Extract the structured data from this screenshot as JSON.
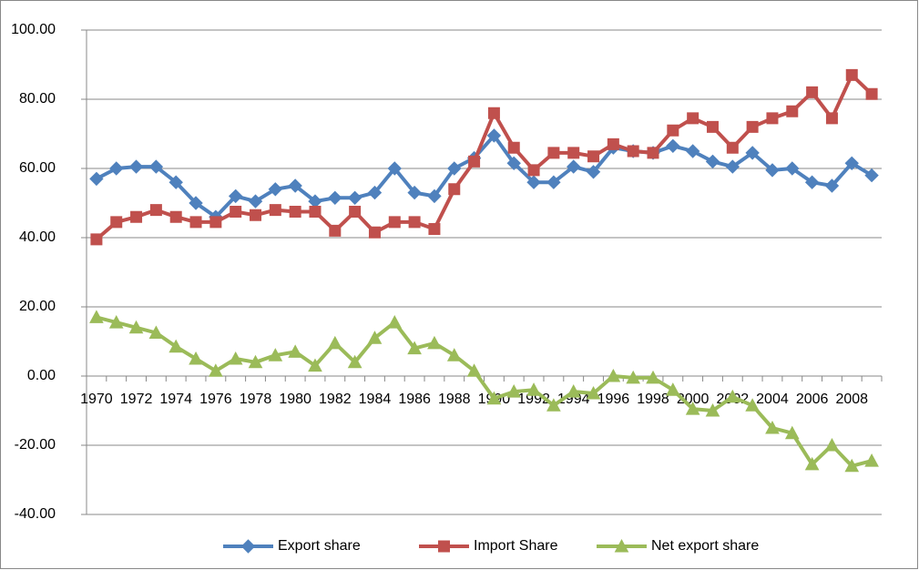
{
  "chart_data": {
    "type": "line",
    "categories": [
      "1970",
      null,
      "1972",
      null,
      "1974",
      null,
      "1976",
      null,
      "1978",
      null,
      "1980",
      null,
      "1982",
      null,
      "1984",
      null,
      "1986",
      null,
      "1988",
      null,
      "1990",
      null,
      "1992",
      null,
      "1994",
      null,
      "1996",
      null,
      "1998",
      null,
      "2000",
      null,
      "2002",
      null,
      "2004",
      null,
      "2006",
      null,
      "2008",
      null
    ],
    "series": [
      {
        "name": "Export share",
        "color": "#4f81bd",
        "marker": "diamond",
        "values": [
          57,
          60,
          60.5,
          60.5,
          56,
          50,
          46,
          52,
          50.5,
          54,
          55,
          50.5,
          51.5,
          51.5,
          53,
          60,
          53,
          52,
          60,
          63,
          69.5,
          61.5,
          56,
          56,
          60.5,
          59,
          66,
          65,
          64.5,
          66.5,
          65,
          62,
          60.5,
          64.5,
          59.5,
          60,
          56,
          55,
          61.5,
          58
        ]
      },
      {
        "name": "Import Share",
        "color": "#c0504d",
        "marker": "square",
        "values": [
          39.5,
          44.5,
          46,
          48,
          46,
          44.5,
          44.5,
          47.5,
          46.5,
          48,
          47.5,
          47.5,
          42,
          47.5,
          41.5,
          44.5,
          44.5,
          42.5,
          54,
          62,
          76,
          66,
          59.5,
          64.5,
          64.5,
          63.5,
          67,
          65,
          64.5,
          71,
          74.5,
          72,
          66,
          72,
          74.5,
          76.5,
          82,
          74.5,
          87,
          81.5
        ]
      },
      {
        "name": "Net export share",
        "color": "#9bbb59",
        "marker": "triangle",
        "values": [
          17,
          15.5,
          14,
          12.5,
          8.5,
          5,
          1.5,
          5,
          4,
          6,
          7,
          3,
          9.5,
          4,
          11,
          15.5,
          8,
          9.5,
          6,
          1.5,
          -6.5,
          -4.5,
          -4,
          -8.5,
          -4.5,
          -5,
          0,
          -0.5,
          -0.5,
          -4,
          -9.5,
          -10,
          -6,
          -8.5,
          -15,
          -16.5,
          -25.5,
          -20,
          -26,
          -24.5
        ]
      }
    ],
    "ylim": [
      -40,
      100
    ],
    "yticks": [
      {
        "value": -40,
        "label": "-40.00"
      },
      {
        "value": -20,
        "label": "-20.00"
      },
      {
        "value": 0,
        "label": "0.00"
      },
      {
        "value": 20,
        "label": "20.00"
      },
      {
        "value": 40,
        "label": "40.00"
      },
      {
        "value": 60,
        "label": "60.00"
      },
      {
        "value": 80,
        "label": "80.00"
      },
      {
        "value": 100,
        "label": "100.00"
      }
    ],
    "grid": true,
    "legend": "bottom"
  }
}
